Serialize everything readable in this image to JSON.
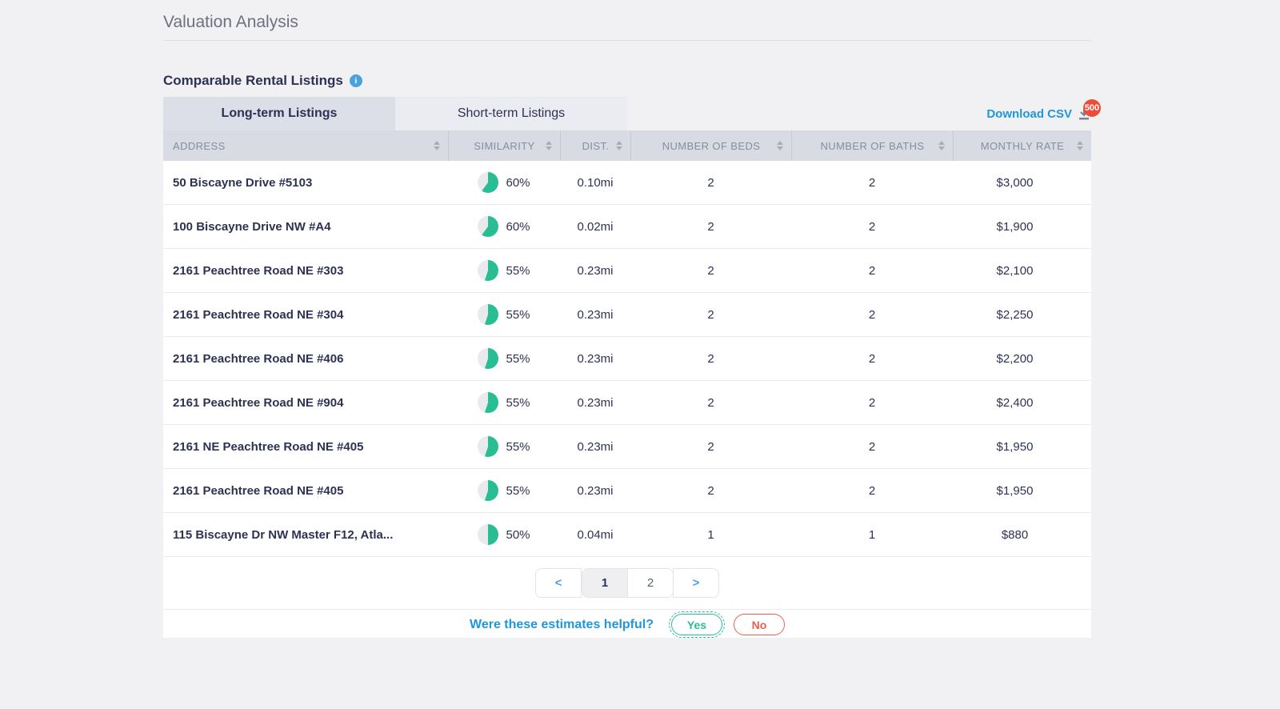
{
  "page": {
    "title": "Valuation Analysis"
  },
  "section": {
    "title": "Comparable Rental Listings",
    "info_icon": "info"
  },
  "tabs": [
    {
      "label": "Long-term Listings",
      "active": true
    },
    {
      "label": "Short-term Listings",
      "active": false
    }
  ],
  "download": {
    "label": "Download CSV",
    "badge": "500"
  },
  "table": {
    "columns": [
      "ADDRESS",
      "SIMILARITY",
      "DIST.",
      "NUMBER OF BEDS",
      "NUMBER OF BATHS",
      "MONTHLY RATE"
    ],
    "rows": [
      {
        "address": "50 Biscayne Drive #5103",
        "similarity_pct": 60,
        "similarity_label": "60%",
        "dist": "0.10mi",
        "beds": "2",
        "baths": "2",
        "rate": "$3,000"
      },
      {
        "address": "100 Biscayne Drive NW #A4",
        "similarity_pct": 60,
        "similarity_label": "60%",
        "dist": "0.02mi",
        "beds": "2",
        "baths": "2",
        "rate": "$1,900"
      },
      {
        "address": "2161 Peachtree Road NE #303",
        "similarity_pct": 55,
        "similarity_label": "55%",
        "dist": "0.23mi",
        "beds": "2",
        "baths": "2",
        "rate": "$2,100"
      },
      {
        "address": "2161 Peachtree Road NE #304",
        "similarity_pct": 55,
        "similarity_label": "55%",
        "dist": "0.23mi",
        "beds": "2",
        "baths": "2",
        "rate": "$2,250"
      },
      {
        "address": "2161 Peachtree Road NE #406",
        "similarity_pct": 55,
        "similarity_label": "55%",
        "dist": "0.23mi",
        "beds": "2",
        "baths": "2",
        "rate": "$2,200"
      },
      {
        "address": "2161 Peachtree Road NE #904",
        "similarity_pct": 55,
        "similarity_label": "55%",
        "dist": "0.23mi",
        "beds": "2",
        "baths": "2",
        "rate": "$2,400"
      },
      {
        "address": "2161 NE Peachtree Road NE #405",
        "similarity_pct": 55,
        "similarity_label": "55%",
        "dist": "0.23mi",
        "beds": "2",
        "baths": "2",
        "rate": "$1,950"
      },
      {
        "address": "2161 Peachtree Road NE #405",
        "similarity_pct": 55,
        "similarity_label": "55%",
        "dist": "0.23mi",
        "beds": "2",
        "baths": "2",
        "rate": "$1,950"
      },
      {
        "address": "115 Biscayne Dr NW Master F12, Atla...",
        "similarity_pct": 50,
        "similarity_label": "50%",
        "dist": "0.04mi",
        "beds": "1",
        "baths": "1",
        "rate": "$880"
      }
    ]
  },
  "pagination": {
    "prev": "<",
    "pages": [
      "1",
      "2"
    ],
    "active_page": "1",
    "next": ">"
  },
  "feedback": {
    "question": "Were these estimates helpful?",
    "yes_label": "Yes",
    "no_label": "No"
  },
  "colors": {
    "green": "#29bd94",
    "link-blue": "#1e97dc",
    "pager-blue": "#4aa0e8",
    "badge-red": "#e94f38",
    "no-red": "#e8604c",
    "info-blue": "#4aa3dd"
  }
}
